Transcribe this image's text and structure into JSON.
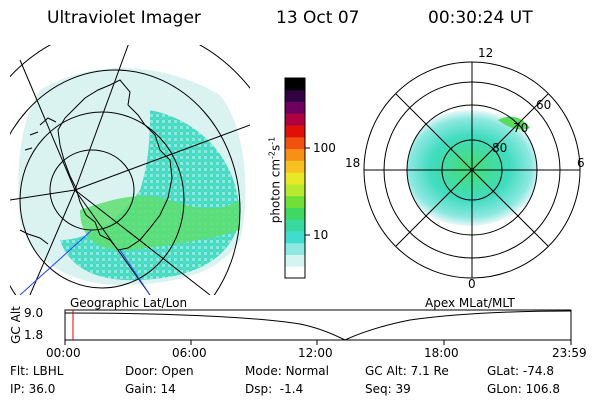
{
  "header": {
    "instrument": "Ultraviolet Imager",
    "date": "13 Oct 07",
    "time": "00:30:24 UT"
  },
  "colorbar": {
    "unit_label": "photon cm",
    "unit_exp1": "-2",
    "unit_mid": "s",
    "unit_exp2": "-1",
    "ticks": [
      {
        "label": "100",
        "value": 100
      },
      {
        "label": "10",
        "value": 10
      }
    ],
    "colors": [
      "#ffffff",
      "#d4f4f2",
      "#8ce8e0",
      "#40dcd0",
      "#38d8a0",
      "#40d860",
      "#70e038",
      "#b8e830",
      "#e8e828",
      "#f8c020",
      "#f89018",
      "#f05010",
      "#e01008",
      "#b00040",
      "#700060",
      "#300040",
      "#000000"
    ]
  },
  "geo_panel": {
    "label": "Geographic Lat/Lon"
  },
  "apex_panel": {
    "label": "Apex MLat/MLT",
    "mlt_labels": {
      "top": "12",
      "right": "6",
      "bottom": "0",
      "left": "18"
    },
    "mlat_labels": [
      "60",
      "70",
      "80"
    ]
  },
  "gc_alt_plot": {
    "ylabel": "GC Alt",
    "yticks": [
      "9.0",
      "1.8"
    ],
    "xticks": [
      "00:00",
      "06:00",
      "12:00",
      "18:00",
      "23:59"
    ],
    "marker_time": "00:30"
  },
  "status": {
    "row1": [
      {
        "label": "Flt:",
        "value": "LBHL"
      },
      {
        "label": "Door:",
        "value": "Open"
      },
      {
        "label": "Mode:",
        "value": "Normal"
      },
      {
        "label": "GC Alt:",
        "value": "7.1 Re"
      },
      {
        "label": "GLat:",
        "value": "-74.8"
      }
    ],
    "row2": [
      {
        "label": "IP:",
        "value": "36.0"
      },
      {
        "label": "Gain:",
        "value": "14"
      },
      {
        "label": "Dsp:",
        "value": "-1.4"
      },
      {
        "label": "Seq:",
        "value": "39"
      },
      {
        "label": "GLon:",
        "value": "106.8"
      }
    ]
  }
}
